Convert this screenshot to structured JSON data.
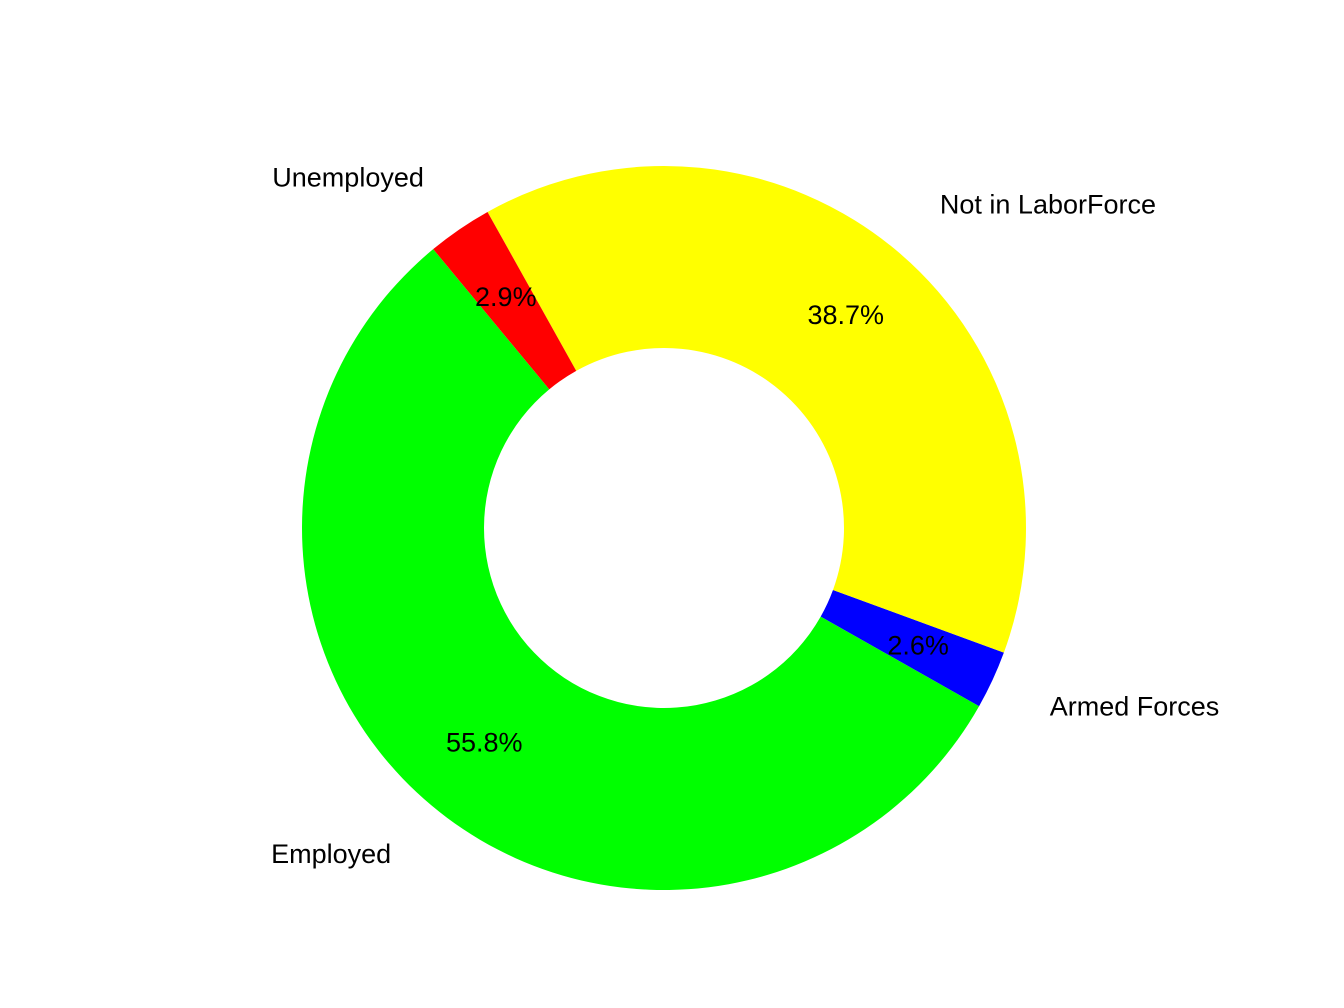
{
  "chart_data": {
    "type": "pie",
    "donut": true,
    "title": "",
    "legend": "none",
    "slices": [
      {
        "label": "Armed Forces",
        "value": 2.6,
        "pct_label": "2.6%",
        "color": "#0000FF"
      },
      {
        "label": "Not in LaborForce",
        "value": 38.7,
        "pct_label": "38.7%",
        "color": "#FFFF00"
      },
      {
        "label": "Unemployed",
        "value": 2.9,
        "pct_label": "2.9%",
        "color": "#FF0000"
      },
      {
        "label": "Employed",
        "value": 55.8,
        "pct_label": "55.8%",
        "color": "#00FF00"
      }
    ]
  }
}
